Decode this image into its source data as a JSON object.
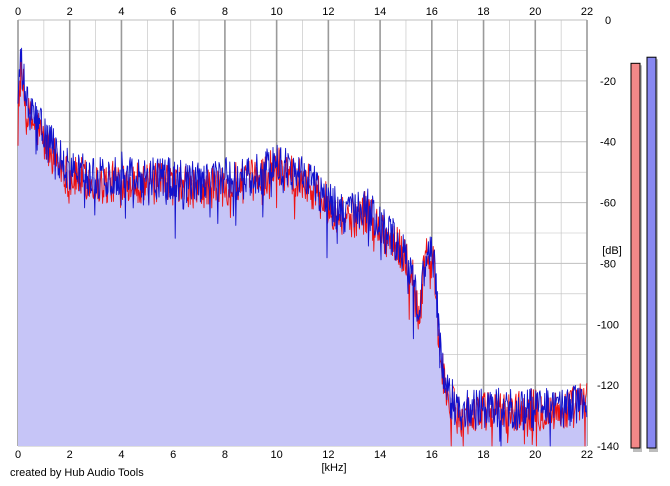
{
  "footer": "created by Hub Audio Tools",
  "chart_data": {
    "type": "area",
    "title": "",
    "xlabel": "[kHz]",
    "ylabel": "[dB]",
    "xlim": [
      0,
      22
    ],
    "ylim": [
      -140,
      0
    ],
    "x_ticks": [
      "0",
      "2",
      "4",
      "6",
      "8",
      "10",
      "12",
      "14",
      "16",
      "18",
      "20",
      "22"
    ],
    "y_ticks": [
      "0",
      "-20",
      "-40",
      "-60",
      "-80",
      "-100",
      "-120",
      "-140"
    ],
    "grid": true,
    "colors": {
      "fill": "#c6c5f7",
      "channel_1": "#ee1111",
      "channel_2": "#1111cc",
      "meter_1": "#f38888",
      "meter_2": "#8888f2",
      "grid_major": "#bfbfbf",
      "grid_minor": "#9a9a9a"
    },
    "envelope": {
      "x": [
        0,
        0.1,
        0.4,
        0.8,
        1,
        1.5,
        2,
        2.5,
        3,
        3.5,
        4,
        5,
        6,
        7,
        8,
        9,
        9.5,
        10,
        10.5,
        11,
        11.5,
        12,
        12.5,
        13,
        13.5,
        14,
        14.5,
        15,
        15.3,
        15.5,
        15.8,
        16.1,
        16.3,
        16.6,
        17,
        18,
        19,
        20,
        21,
        21.5,
        22
      ],
      "y": [
        -25,
        -14,
        -30,
        -34,
        -38,
        -44,
        -50,
        -50,
        -52,
        -52,
        -50,
        -52,
        -52,
        -54,
        -52,
        -52,
        -50,
        -47,
        -49,
        -50,
        -54,
        -60,
        -63,
        -64,
        -62,
        -68,
        -72,
        -78,
        -85,
        -98,
        -75,
        -80,
        -108,
        -122,
        -128,
        -128,
        -128,
        -128,
        -128,
        -126,
        -124
      ]
    },
    "series": [
      {
        "name": "",
        "color": "#ee1111",
        "x": [
          0,
          0.1,
          0.4,
          0.8,
          1,
          1.5,
          2,
          2.5,
          3,
          3.5,
          4,
          5,
          6,
          7,
          8,
          9,
          9.5,
          10,
          10.5,
          11,
          11.5,
          12,
          12.5,
          13,
          13.5,
          14,
          14.5,
          15,
          15.3,
          15.5,
          15.8,
          16.1,
          16.3,
          16.6,
          17,
          18,
          19,
          20,
          21,
          21.5,
          22
        ],
        "y": [
          -27,
          -18,
          -32,
          -36,
          -40,
          -46,
          -52,
          -52,
          -54,
          -54,
          -52,
          -54,
          -54,
          -56,
          -54,
          -53,
          -51,
          -48,
          -50,
          -52,
          -56,
          -61,
          -64,
          -65,
          -63,
          -69,
          -73,
          -78,
          -86,
          -97,
          -76,
          -81,
          -110,
          -124,
          -130,
          -129,
          -129,
          -128,
          -129,
          -127,
          -125
        ]
      },
      {
        "name": "",
        "color": "#1111cc",
        "x": [
          0,
          0.1,
          0.4,
          0.8,
          1,
          1.5,
          2,
          2.5,
          3,
          3.5,
          4,
          5,
          6,
          7,
          8,
          9,
          9.5,
          10,
          10.5,
          11,
          11.5,
          12,
          12.5,
          13,
          13.5,
          14,
          14.5,
          15,
          15.3,
          15.5,
          15.8,
          16.1,
          16.3,
          16.6,
          17,
          18,
          19,
          20,
          21,
          21.5,
          22
        ],
        "y": [
          -25,
          -14,
          -30,
          -34,
          -38,
          -44,
          -50,
          -50,
          -52,
          -52,
          -50,
          -52,
          -52,
          -54,
          -52,
          -52,
          -50,
          -47,
          -49,
          -50,
          -54,
          -60,
          -63,
          -64,
          -62,
          -68,
          -72,
          -78,
          -85,
          -98,
          -75,
          -80,
          -108,
          -122,
          -128,
          -128,
          -128,
          -128,
          -128,
          -126,
          -124
        ]
      }
    ],
    "level_meters": [
      {
        "channel": "left",
        "color": "#f38888",
        "level_db": -7
      },
      {
        "channel": "right",
        "color": "#8888f2",
        "level_db": -5
      }
    ]
  }
}
